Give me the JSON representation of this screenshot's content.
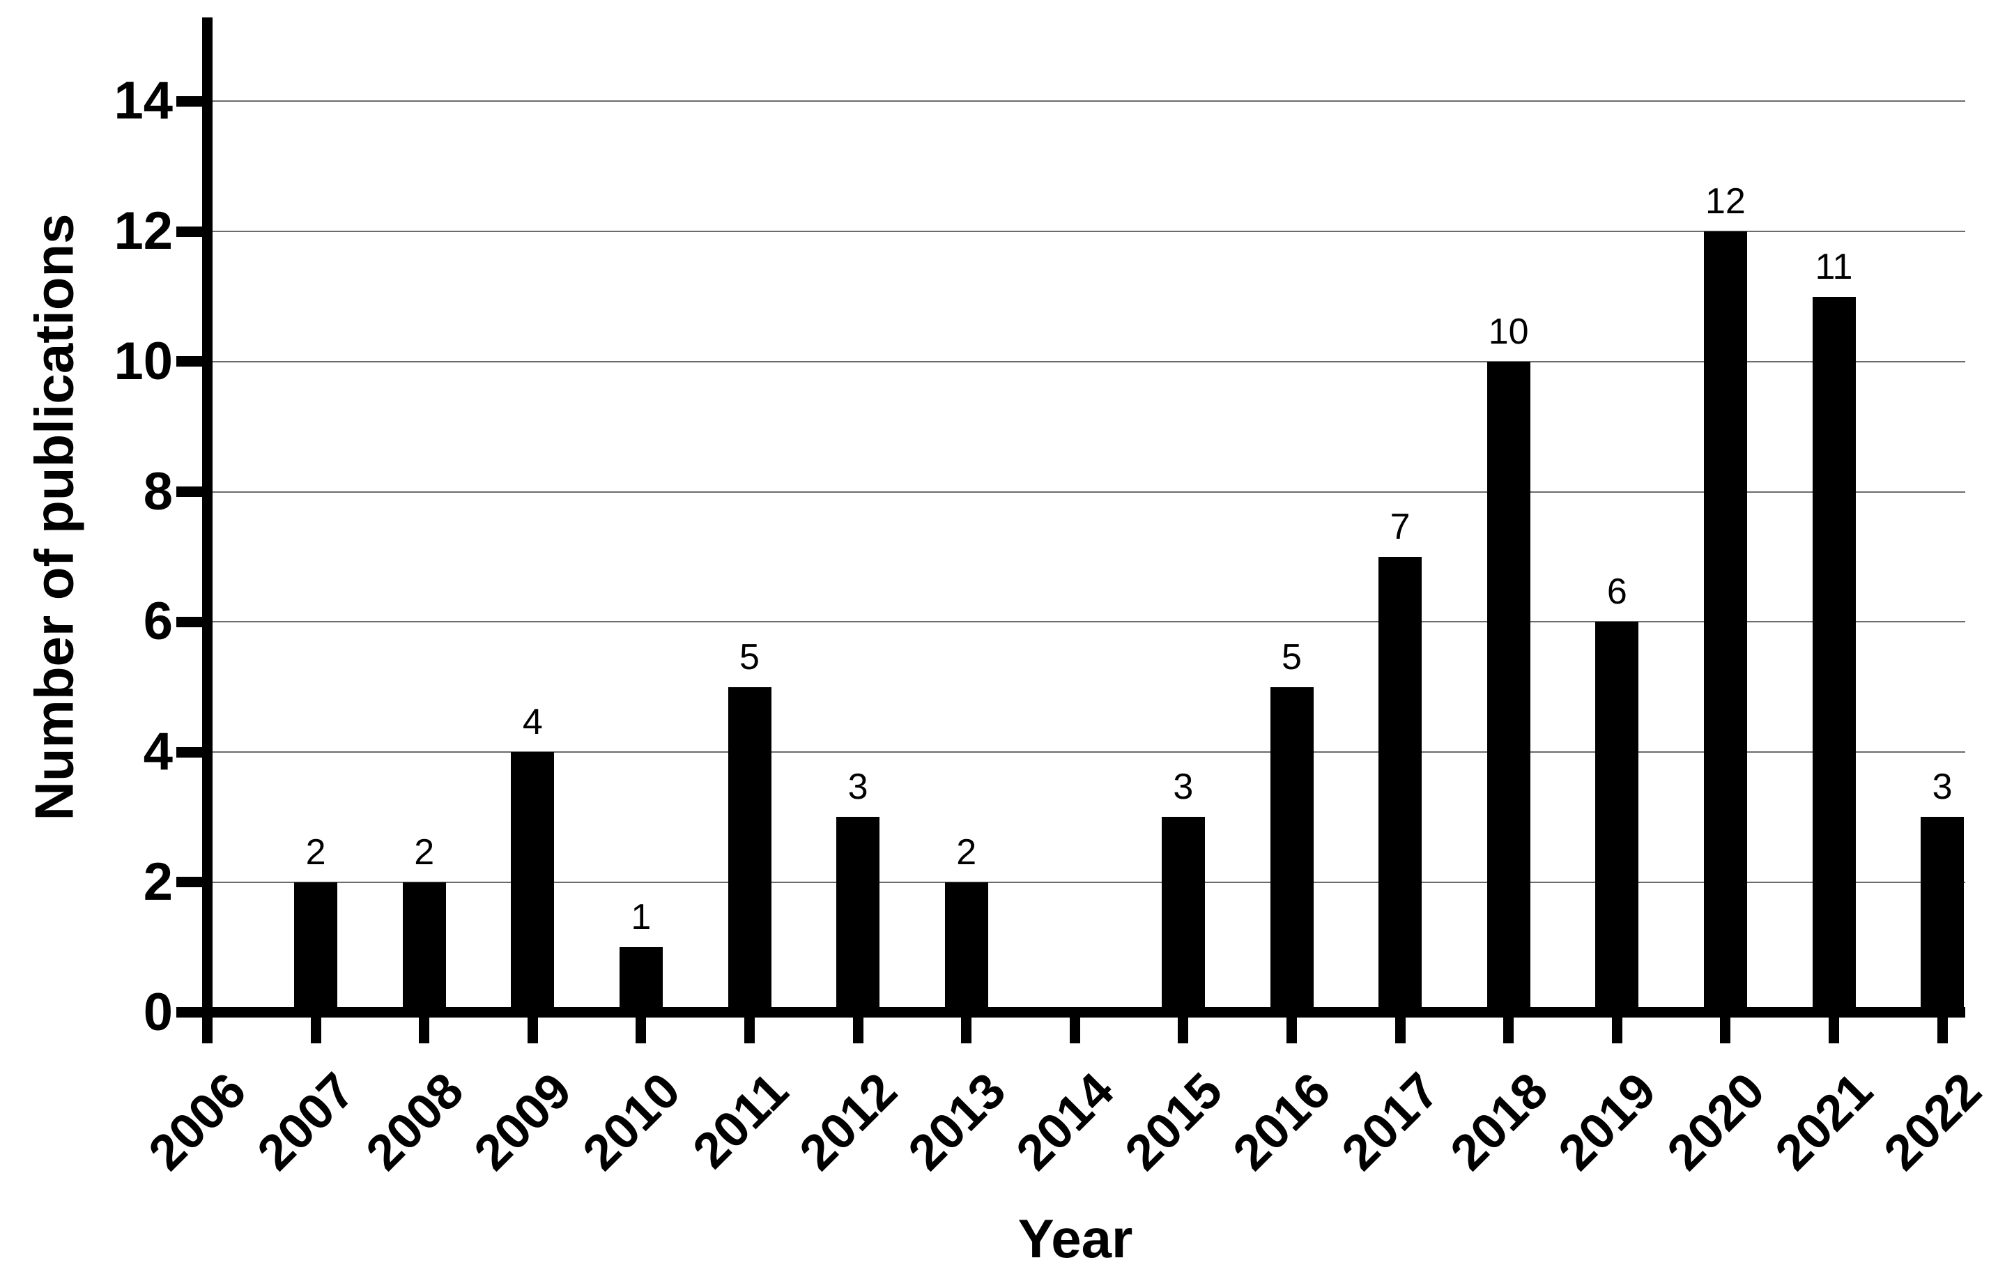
{
  "chart_data": {
    "type": "bar",
    "title": "",
    "xlabel": "Year",
    "ylabel": "Number of publications",
    "categories": [
      "2006",
      "2007",
      "2008",
      "2009",
      "2010",
      "2011",
      "2012",
      "2013",
      "2014",
      "2015",
      "2016",
      "2017",
      "2018",
      "2019",
      "2020",
      "2021",
      "2022"
    ],
    "values": [
      0,
      2,
      2,
      4,
      1,
      5,
      3,
      2,
      0,
      3,
      5,
      7,
      10,
      6,
      12,
      11,
      3
    ],
    "bar_value_labels": [
      "",
      "2",
      "2",
      "4",
      "1",
      "5",
      "3",
      "2",
      "",
      "3",
      "5",
      "7",
      "10",
      "6",
      "12",
      "11",
      "3"
    ],
    "yticks": [
      0,
      2,
      4,
      6,
      8,
      10,
      12,
      14
    ],
    "ylim": [
      0,
      15.3
    ],
    "grid": "horizontal-major",
    "legend": "none",
    "bar_color": "#000000",
    "axis_color": "#000000",
    "gridline_color": "#6b6b6b",
    "background_color": "#ffffff",
    "text_color": "#000000"
  }
}
